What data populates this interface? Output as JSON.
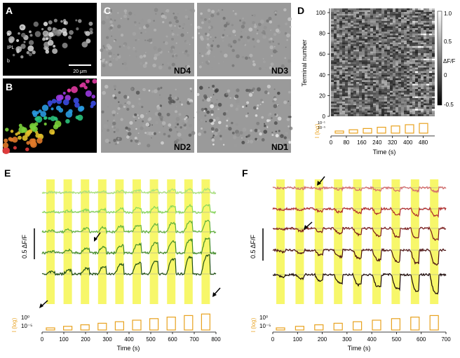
{
  "panels": {
    "A": {
      "letter": "A",
      "layer_labels": [
        "a",
        "IPL",
        "b"
      ],
      "scale_label": "20 μm"
    },
    "B": {
      "letter": "B"
    },
    "C": {
      "letter": "C",
      "images": [
        "ND4",
        "ND3",
        "ND2",
        "ND1"
      ]
    },
    "D": {
      "letter": "D",
      "ylabel": "Terminal number",
      "yticks": [
        0,
        20,
        40,
        60,
        80,
        100
      ],
      "colorbar_label": "ΔF/F",
      "colorbar_ticks": [
        "1.0",
        "0.5",
        "0",
        "-0.5"
      ],
      "intensity_label": "I (log)",
      "intensity_ticks": [
        "10⁻¹",
        "10⁻⁵"
      ],
      "xlabel": "Time (s)",
      "xticks": [
        0,
        80,
        160,
        240,
        320,
        400,
        480
      ],
      "stim_color": "#e8a21f"
    },
    "E": {
      "letter": "E",
      "scale_label": "0.5 ΔF/F",
      "intensity_label": "I (log)",
      "intensity_ticks": [
        "10⁰",
        "10⁻⁵"
      ],
      "xlabel": "Time (s)",
      "xticks": [
        0,
        100,
        200,
        300,
        400,
        500,
        600,
        700,
        800
      ],
      "highlight_color": "#f7f76a",
      "trace_colors": [
        "#a8e37a",
        "#86d65a",
        "#5fb03b",
        "#3f8a26",
        "#1f4f14"
      ]
    },
    "F": {
      "letter": "F",
      "scale_label": "0.5 ΔF/F",
      "intensity_label": "I (log)",
      "intensity_ticks": [
        "10⁰",
        "10⁻⁵"
      ],
      "xlabel": "Time (s)",
      "xticks": [
        0,
        100,
        200,
        300,
        400,
        500,
        600,
        700
      ],
      "highlight_color": "#f7f76a",
      "trace_colors": [
        "#d46a6a",
        "#b02a2a",
        "#7a1a1a",
        "#4a1010",
        "#1a0808"
      ]
    }
  }
}
